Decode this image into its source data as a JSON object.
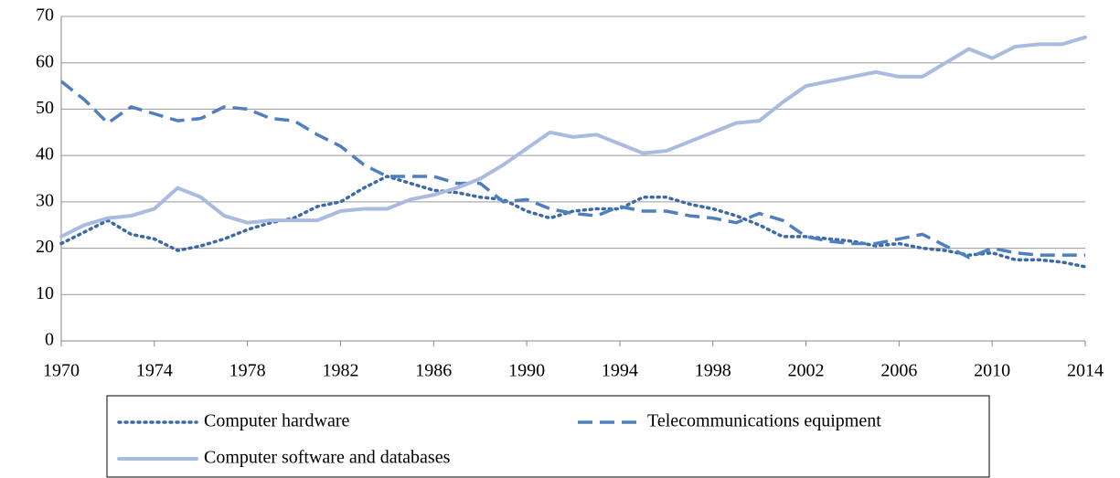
{
  "chart_data": {
    "type": "line",
    "x": [
      1970,
      1971,
      1972,
      1973,
      1974,
      1975,
      1976,
      1977,
      1978,
      1979,
      1980,
      1981,
      1982,
      1983,
      1984,
      1985,
      1986,
      1987,
      1988,
      1989,
      1990,
      1991,
      1992,
      1993,
      1994,
      1995,
      1996,
      1997,
      1998,
      1999,
      2000,
      2001,
      2002,
      2003,
      2004,
      2005,
      2006,
      2007,
      2008,
      2009,
      2010,
      2011,
      2012,
      2013,
      2014
    ],
    "series": [
      {
        "name": "Computer hardware",
        "color": "#3b6aa6",
        "line_style": "dotted",
        "values": [
          21,
          23.5,
          26,
          23,
          22,
          19.5,
          20.5,
          22,
          24,
          25.5,
          26.5,
          29,
          30,
          33,
          35.5,
          34,
          32.5,
          32,
          31,
          30.5,
          28,
          26.5,
          28,
          28.5,
          28.5,
          31,
          31,
          29.5,
          28.5,
          27,
          25,
          22.5,
          22.5,
          22,
          21.5,
          20.5,
          21,
          20,
          19.5,
          18.5,
          19,
          17.5,
          17.5,
          17,
          16
        ]
      },
      {
        "name": "Telecommunications equipment",
        "color": "#4f7fbf",
        "line_style": "dashed",
        "values": [
          56,
          52,
          47,
          50.5,
          49,
          47.5,
          48,
          50.5,
          50,
          48,
          47.5,
          44.5,
          42,
          38,
          35.5,
          35.5,
          35.5,
          34,
          34,
          30,
          30.5,
          28.5,
          27.5,
          27,
          29,
          28,
          28,
          27,
          26.5,
          25.5,
          27.5,
          26,
          22.5,
          21.5,
          21,
          21,
          22,
          23,
          20.5,
          18,
          20,
          19,
          18.5,
          18.5,
          18.5
        ]
      },
      {
        "name": "Computer software and databases",
        "color": "#a9bbde",
        "line_style": "solid",
        "values": [
          22.5,
          25,
          26.5,
          27,
          28.5,
          33,
          31,
          27,
          25.5,
          26,
          26,
          26,
          28,
          28.5,
          28.5,
          30.5,
          31.5,
          33,
          35,
          38,
          41.5,
          45,
          44,
          44.5,
          42.5,
          40.5,
          41,
          43,
          45,
          47,
          47.5,
          51.5,
          55,
          56,
          57,
          58,
          57,
          57,
          60,
          63,
          61,
          63.5,
          64,
          64,
          65.5
        ]
      }
    ],
    "xlim": [
      1970,
      2014
    ],
    "xticks": [
      1970,
      1974,
      1978,
      1982,
      1986,
      1990,
      1994,
      1998,
      2002,
      2006,
      2010,
      2014
    ],
    "ylim": [
      0,
      70
    ],
    "yticks": [
      0,
      10,
      20,
      30,
      40,
      50,
      60,
      70
    ],
    "grid": true
  }
}
